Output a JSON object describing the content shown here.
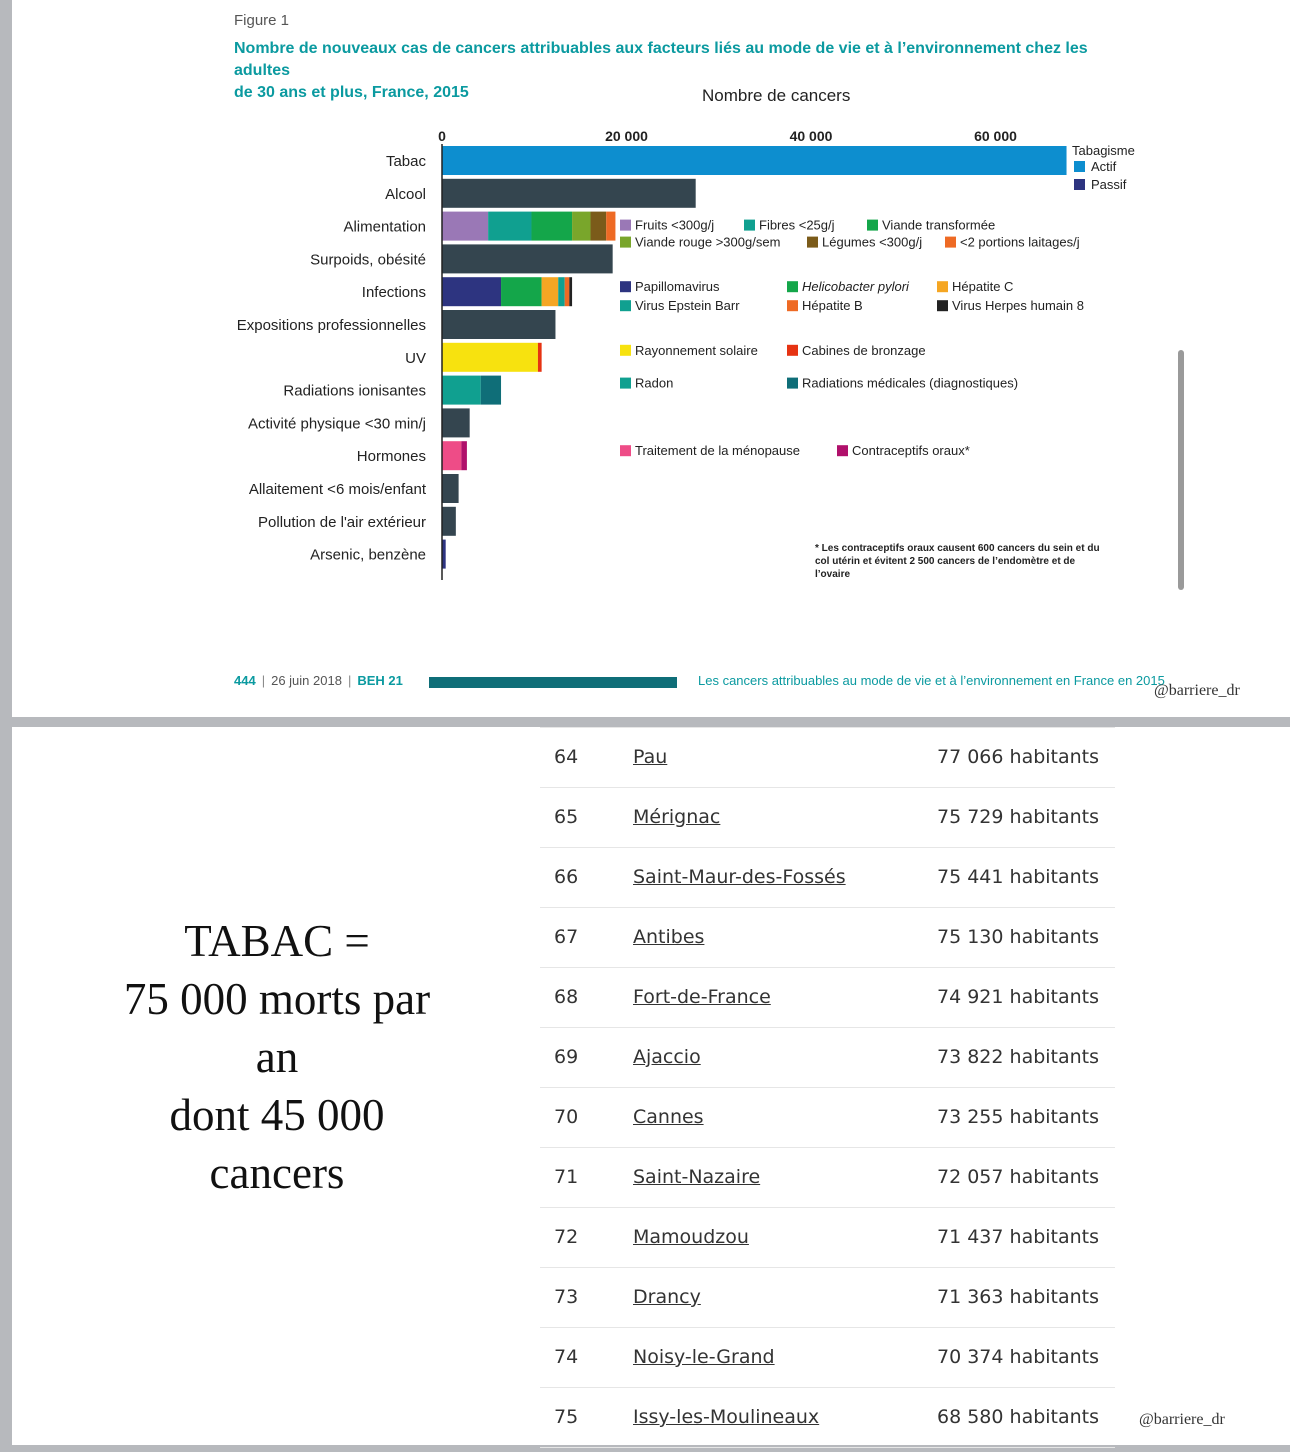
{
  "figure": {
    "label": "Figure 1",
    "title_line1": "Nombre de nouveaux cas de cancers attribuables aux facteurs liés au mode de vie et à l’environnement chez les adultes",
    "title_line2": "de 30 ans et plus, France, 2015"
  },
  "chart_data": {
    "type": "bar",
    "orientation": "horizontal",
    "stacked": true,
    "xlabel": "Nombre de cancers",
    "xticks": [
      "0",
      "20 000",
      "40 000",
      "60 000"
    ],
    "xlim": [
      0,
      70000
    ],
    "categories": [
      "Tabac",
      "Alcool",
      "Alimentation",
      "Surpoids, obésité",
      "Infections",
      "Expositions professionnelles",
      "UV",
      "Radiations ionisantes",
      "Activité physique <30 min/j",
      "Hormones",
      "Allaitement <6 mois/enfant",
      "Pollution de l'air extérieur",
      "Arsenic, benzène"
    ],
    "bars": [
      [
        {
          "label": "Actif",
          "value": 67700,
          "color": "#0d8ecf"
        }
      ],
      [
        {
          "label": "Alcool",
          "value": 27500,
          "color": "#34454f"
        }
      ],
      [
        {
          "label": "Fruits <300g/j",
          "value": 5000,
          "color": "#9a78b6"
        },
        {
          "label": "Fibres <25g/j",
          "value": 4700,
          "color": "#10a090"
        },
        {
          "label": "Viande transformée",
          "value": 4400,
          "color": "#14a64a"
        },
        {
          "label": "Viande rouge >300g/sem",
          "value": 2000,
          "color": "#79a62b"
        },
        {
          "label": "Légumes <300g/j",
          "value": 1700,
          "color": "#7b5b1a"
        },
        {
          "label": "<2 portions laitages/j",
          "value": 1000,
          "color": "#ee6a24"
        }
      ],
      [
        {
          "label": "Surpoids, obésité",
          "value": 18500,
          "color": "#34454f"
        }
      ],
      [
        {
          "label": "Papillomavirus",
          "value": 6400,
          "color": "#2d3480"
        },
        {
          "label": "Helicobacter pylori",
          "value": 4400,
          "color": "#14a64a"
        },
        {
          "label": "Hépatite C",
          "value": 1800,
          "color": "#f5a623"
        },
        {
          "label": "Virus Epstein Barr",
          "value": 700,
          "color": "#10a090"
        },
        {
          "label": "Hépatite B",
          "value": 500,
          "color": "#ee6a24"
        },
        {
          "label": "Virus Herpes humain 8",
          "value": 300,
          "color": "#222222"
        }
      ],
      [
        {
          "label": "Expositions professionnelles",
          "value": 12300,
          "color": "#34454f"
        }
      ],
      [
        {
          "label": "Rayonnement solaire",
          "value": 10400,
          "color": "#f7e20f"
        },
        {
          "label": "Cabines de bronzage",
          "value": 400,
          "color": "#e63312"
        }
      ],
      [
        {
          "label": "Radon",
          "value": 4200,
          "color": "#10a090"
        },
        {
          "label": "Radiations médicales (diagnostiques)",
          "value": 2200,
          "color": "#0f6e78"
        }
      ],
      [
        {
          "label": "Activité physique <30 min/j",
          "value": 3000,
          "color": "#34454f"
        }
      ],
      [
        {
          "label": "Traitement de la ménopause",
          "value": 2100,
          "color": "#ee4c87"
        },
        {
          "label": "Contraceptifs oraux*",
          "value": 600,
          "color": "#b0106b"
        }
      ],
      [
        {
          "label": "Allaitement <6 mois/enfant",
          "value": 1800,
          "color": "#34454f"
        }
      ],
      [
        {
          "label": "Pollution de l'air extérieur",
          "value": 1500,
          "color": "#34454f"
        }
      ],
      [
        {
          "label": "Arsenic, benzène",
          "value": 400,
          "color": "#2d3480"
        }
      ]
    ],
    "legends": [
      {
        "row": 0,
        "heading": "Tabagisme",
        "items": [
          {
            "label": "Actif",
            "color": "#0d8ecf"
          },
          {
            "label": "Passif",
            "color": "#2d3480"
          }
        ]
      },
      {
        "row": 2,
        "items": [
          {
            "label": "Fruits <300g/j",
            "color": "#9a78b6"
          },
          {
            "label": "Fibres <25g/j",
            "color": "#10a090"
          },
          {
            "label": "Viande transformée",
            "color": "#14a64a"
          },
          {
            "label": "Viande rouge >300g/sem",
            "color": "#79a62b"
          },
          {
            "label": "Légumes <300g/j",
            "color": "#7b5b1a"
          },
          {
            "label": "<2 portions laitages/j",
            "color": "#ee6a24"
          }
        ]
      },
      {
        "row": 4,
        "items": [
          {
            "label": "Papillomavirus",
            "color": "#2d3480"
          },
          {
            "label": "Helicobacter pylori",
            "color": "#14a64a",
            "italic": true
          },
          {
            "label": "Hépatite C",
            "color": "#f5a623"
          },
          {
            "label": "Virus Epstein Barr",
            "color": "#10a090"
          },
          {
            "label": "Hépatite B",
            "color": "#ee6a24"
          },
          {
            "label": "Virus Herpes humain 8",
            "color": "#222222"
          }
        ]
      },
      {
        "row": 6,
        "items": [
          {
            "label": "Rayonnement solaire",
            "color": "#f7e20f"
          },
          {
            "label": "Cabines de bronzage",
            "color": "#e63312"
          }
        ]
      },
      {
        "row": 7,
        "items": [
          {
            "label": "Radon",
            "color": "#10a090"
          },
          {
            "label": "Radiations médicales (diagnostiques)",
            "color": "#0f6e78"
          }
        ]
      },
      {
        "row": 9,
        "items": [
          {
            "label": "Traitement de la ménopause",
            "color": "#ee4c87"
          },
          {
            "label": "Contraceptifs oraux*",
            "color": "#b0106b"
          }
        ]
      }
    ],
    "footnote": [
      "* Les contraceptifs oraux causent 600 cancers du sein et du",
      "col utérin et évitent 2 500 cancers de l’endomètre et de",
      "l’ovaire"
    ]
  },
  "footer": {
    "page": "444",
    "date": "26 juin 2018",
    "journal": "BEH 21",
    "running_title": "Les cancers attribuables au mode de vie et à l’environnement en France en 2015"
  },
  "watermark": "@barriere_dr",
  "claim": [
    "TABAC =",
    "75 000 morts par",
    "an",
    "dont 45 000",
    "cancers"
  ],
  "cities": [
    {
      "rank": "64",
      "name": "Pau",
      "population": "77 066 habitants"
    },
    {
      "rank": "65",
      "name": "Mérignac",
      "population": "75 729 habitants"
    },
    {
      "rank": "66",
      "name": "Saint-Maur-des-Fossés",
      "population": "75 441 habitants"
    },
    {
      "rank": "67",
      "name": "Antibes",
      "population": "75 130 habitants"
    },
    {
      "rank": "68",
      "name": "Fort-de-France",
      "population": "74 921 habitants"
    },
    {
      "rank": "69",
      "name": "Ajaccio",
      "population": "73 822 habitants"
    },
    {
      "rank": "70",
      "name": "Cannes",
      "population": "73 255 habitants"
    },
    {
      "rank": "71",
      "name": "Saint-Nazaire",
      "population": "72 057 habitants"
    },
    {
      "rank": "72",
      "name": "Mamoudzou",
      "population": "71 437 habitants"
    },
    {
      "rank": "73",
      "name": "Drancy",
      "population": "71 363 habitants"
    },
    {
      "rank": "74",
      "name": "Noisy-le-Grand",
      "population": "70 374 habitants"
    },
    {
      "rank": "75",
      "name": "Issy-les-Moulineaux",
      "population": "68 580 habitants"
    }
  ]
}
